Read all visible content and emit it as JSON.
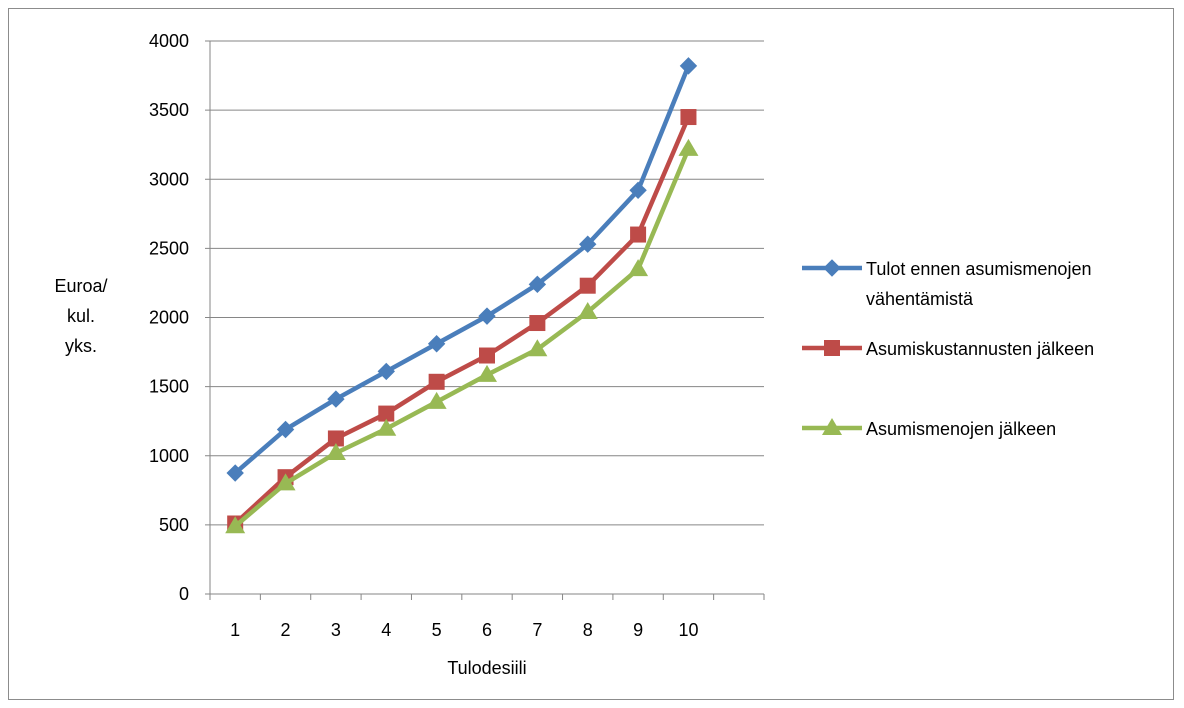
{
  "chart_data": {
    "type": "line",
    "title": "",
    "xlabel": "Tulodesiili",
    "ylabel_lines": [
      "Euroa/",
      "kul.",
      "yks."
    ],
    "categories": [
      "1",
      "2",
      "3",
      "4",
      "5",
      "6",
      "7",
      "8",
      "9",
      "10"
    ],
    "ylim": [
      0,
      4000
    ],
    "yticks": [
      0,
      500,
      1000,
      1500,
      2000,
      2500,
      3000,
      3500,
      4000
    ],
    "grid": true,
    "legend_position": "right",
    "series": [
      {
        "name_lines": [
          "Tulot ennen asumismenojen",
          "vähentämistä"
        ],
        "color": "#4a7ebb",
        "marker": "diamond",
        "values": [
          875,
          1190,
          1410,
          1610,
          1810,
          2010,
          2240,
          2530,
          2920,
          3820
        ]
      },
      {
        "name_lines": [
          "Asumiskustannusten jälkeen"
        ],
        "color": "#be4b48",
        "marker": "square",
        "values": [
          510,
          845,
          1125,
          1305,
          1535,
          1725,
          1960,
          2230,
          2600,
          3450
        ]
      },
      {
        "name_lines": [
          "Asumismenojen jälkeen"
        ],
        "color": "#98b954",
        "marker": "triangle",
        "values": [
          490,
          800,
          1020,
          1195,
          1390,
          1585,
          1770,
          2040,
          2350,
          3220
        ]
      }
    ]
  }
}
